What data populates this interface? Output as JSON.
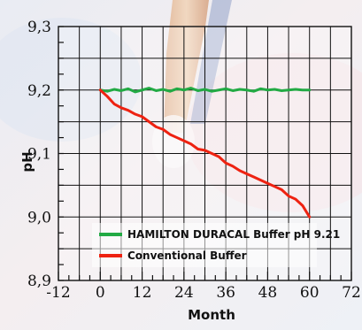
{
  "chart_data": {
    "type": "line",
    "title": "",
    "xlabel": "Month",
    "ylabel": "pH",
    "xlim": [
      -12,
      72
    ],
    "ylim": [
      8.9,
      9.3
    ],
    "grid": true,
    "x_tick_labels": [
      {
        "value": -12,
        "label": "-12"
      },
      {
        "value": 0,
        "label": "0"
      },
      {
        "value": 12,
        "label": "12"
      },
      {
        "value": 24,
        "label": "24"
      },
      {
        "value": 36,
        "label": "36"
      },
      {
        "value": 48,
        "label": "48"
      },
      {
        "value": 60,
        "label": "60"
      },
      {
        "value": 72,
        "label": "72"
      }
    ],
    "y_tick_labels": [
      {
        "value": 8.9,
        "label": "8,9"
      },
      {
        "value": 9.0,
        "label": "9,0"
      },
      {
        "value": 9.1,
        "label": "9,1"
      },
      {
        "value": 9.2,
        "label": "9,2"
      },
      {
        "value": 9.3,
        "label": "9,3"
      }
    ],
    "legend_position": "bottom-left",
    "series": [
      {
        "name": "HAMILTON DURACAL Buffer pH 9.21",
        "color": "#22aa44",
        "x": [
          0,
          2,
          4,
          6,
          8,
          10,
          12,
          14,
          16,
          18,
          20,
          22,
          24,
          26,
          28,
          30,
          32,
          34,
          36,
          38,
          40,
          42,
          44,
          46,
          48,
          50,
          52,
          54,
          56,
          58,
          60
        ],
        "y": [
          9.2,
          9.198,
          9.201,
          9.199,
          9.202,
          9.197,
          9.2,
          9.203,
          9.199,
          9.201,
          9.198,
          9.202,
          9.2,
          9.203,
          9.199,
          9.201,
          9.198,
          9.2,
          9.202,
          9.199,
          9.201,
          9.2,
          9.198,
          9.202,
          9.2,
          9.201,
          9.199,
          9.2,
          9.201,
          9.2,
          9.2
        ]
      },
      {
        "name": "Conventional Buffer",
        "color": "#ee2211",
        "x": [
          0,
          2,
          4,
          6,
          8,
          10,
          12,
          14,
          16,
          18,
          20,
          22,
          24,
          26,
          28,
          30,
          32,
          34,
          36,
          38,
          40,
          42,
          44,
          46,
          48,
          50,
          52,
          54,
          56,
          58,
          60
        ],
        "y": [
          9.2,
          9.19,
          9.178,
          9.172,
          9.168,
          9.162,
          9.158,
          9.15,
          9.142,
          9.138,
          9.13,
          9.125,
          9.12,
          9.115,
          9.107,
          9.105,
          9.1,
          9.095,
          9.085,
          9.08,
          9.073,
          9.068,
          9.063,
          9.058,
          9.053,
          9.048,
          9.043,
          9.033,
          9.028,
          9.018,
          9.0
        ]
      }
    ]
  }
}
